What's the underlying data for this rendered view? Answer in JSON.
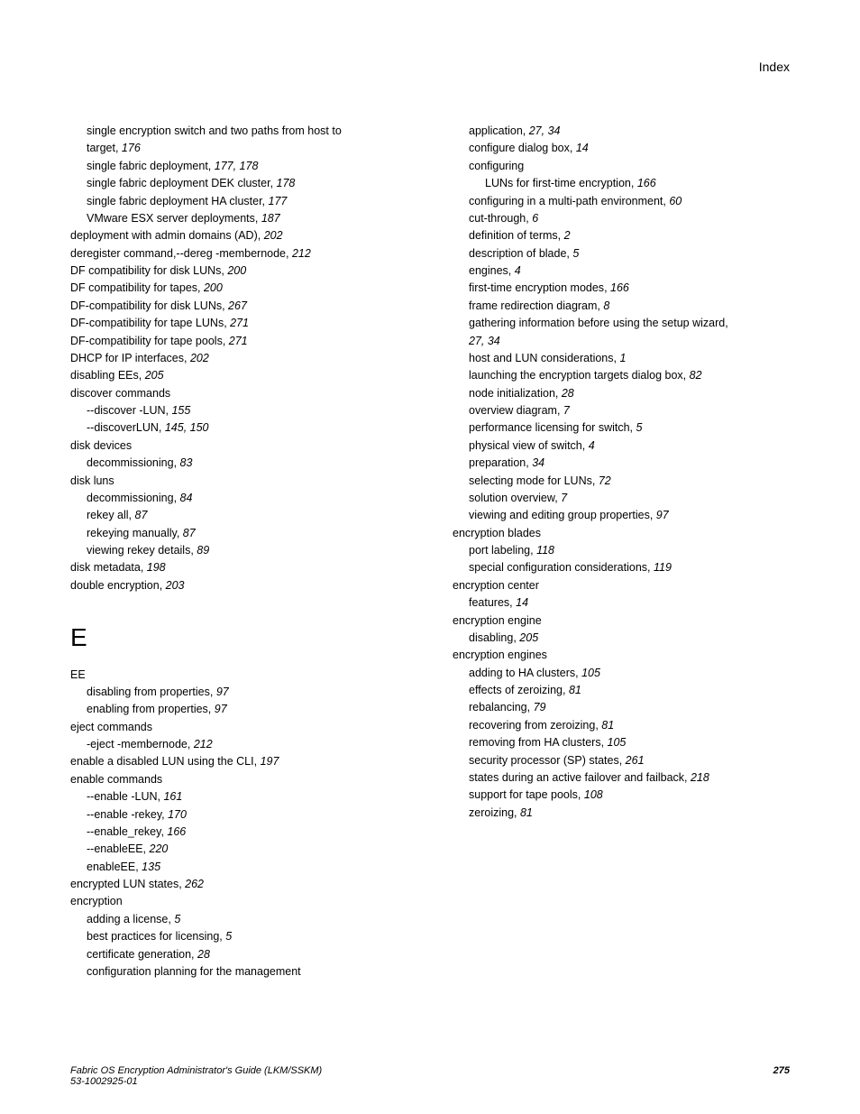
{
  "header": {
    "right": "Index"
  },
  "footer": {
    "title": "Fabric OS Encryption Administrator's Guide  (LKM/SSKM)",
    "docnum": "53-1002925-01",
    "page": "275"
  },
  "sectionLetter": "E",
  "col1": [
    {
      "indent": 1,
      "text": "single encryption switch and two paths from host to"
    },
    {
      "indent": 1,
      "text": " target",
      "pages": "176"
    },
    {
      "indent": 1,
      "text": "single fabric deployment",
      "pages": "177, 178"
    },
    {
      "indent": 1,
      "text": "single fabric deployment DEK cluster",
      "pages": "178"
    },
    {
      "indent": 1,
      "text": "single fabric deployment HA cluster",
      "pages": "177"
    },
    {
      "indent": 1,
      "text": "VMware ESX server deployments",
      "pages": "187"
    },
    {
      "indent": 0,
      "text": "deployment with admin domains (AD)",
      "pages": "202"
    },
    {
      "indent": 0,
      "text": "deregister command,--dereg -membernode",
      "pages": "212"
    },
    {
      "indent": 0,
      "text": "DF compatibility for disk LUNs",
      "pages": "200"
    },
    {
      "indent": 0,
      "text": "DF compatibility for tapes",
      "pages": "200"
    },
    {
      "indent": 0,
      "text": "DF-compatibility for disk LUNs",
      "pages": "267"
    },
    {
      "indent": 0,
      "text": "DF-compatibility for tape LUNs",
      "pages": "271"
    },
    {
      "indent": 0,
      "text": "DF-compatibility for tape pools",
      "pages": "271"
    },
    {
      "indent": 0,
      "text": "DHCP for IP interfaces",
      "pages": "202"
    },
    {
      "indent": 0,
      "text": "disabling EEs",
      "pages": "205"
    },
    {
      "indent": 0,
      "text": "discover commands"
    },
    {
      "indent": 1,
      "text": "--discover -LUN",
      "pages": "155"
    },
    {
      "indent": 1,
      "text": "--discoverLUN",
      "pages": "145, 150"
    },
    {
      "indent": 0,
      "text": "disk devices"
    },
    {
      "indent": 1,
      "text": "decommissioning",
      "pages": "83"
    },
    {
      "indent": 0,
      "text": "disk luns"
    },
    {
      "indent": 1,
      "text": "decommissioning",
      "pages": "84"
    },
    {
      "indent": 1,
      "text": "rekey all",
      "pages": "87"
    },
    {
      "indent": 1,
      "text": "rekeying manually",
      "pages": "87"
    },
    {
      "indent": 1,
      "text": "viewing rekey details",
      "pages": "89"
    },
    {
      "indent": 0,
      "text": "disk metadata",
      "pages": "198"
    },
    {
      "indent": 0,
      "text": "double encryption",
      "pages": "203"
    }
  ],
  "col1b": [
    {
      "indent": 0,
      "text": "EE"
    },
    {
      "indent": 1,
      "text": "disabling from properties",
      "pages": "97"
    },
    {
      "indent": 1,
      "text": "enabling from properties",
      "pages": "97"
    },
    {
      "indent": 0,
      "text": "eject commands"
    },
    {
      "indent": 1,
      "text": "-eject -membernode",
      "pages": "212"
    },
    {
      "indent": 0,
      "text": "enable a disabled LUN using the CLI",
      "pages": "197"
    },
    {
      "indent": 0,
      "text": "enable commands"
    },
    {
      "indent": 1,
      "text": "--enable -LUN",
      "pages": "161"
    },
    {
      "indent": 1,
      "text": "--enable -rekey",
      "pages": "170"
    },
    {
      "indent": 1,
      "text": "--enable_rekey",
      "pages": "166"
    },
    {
      "indent": 1,
      "text": "--enableEE",
      "pages": "220"
    },
    {
      "indent": 1,
      "text": "enableEE",
      "pages": "135"
    },
    {
      "indent": 0,
      "text": "encrypted LUN states",
      "pages": "262"
    },
    {
      "indent": 0,
      "text": "encryption"
    },
    {
      "indent": 1,
      "text": "adding a license",
      "pages": "5"
    },
    {
      "indent": 1,
      "text": "best practices for licensing",
      "pages": "5"
    },
    {
      "indent": 1,
      "text": "certificate generation",
      "pages": "28"
    },
    {
      "indent": 1,
      "text": "configuration planning for the management"
    }
  ],
  "col2": [
    {
      "indent": 1,
      "text": " application",
      "pages": "27, 34"
    },
    {
      "indent": 1,
      "text": "configure dialog box",
      "pages": "14"
    },
    {
      "indent": 1,
      "text": "configuring"
    },
    {
      "indent": 2,
      "text": "LUNs for first-time encryption",
      "pages": "166"
    },
    {
      "indent": 1,
      "text": "configuring in a multi-path environment",
      "pages": "60"
    },
    {
      "indent": 1,
      "text": "cut-through",
      "pages": "6"
    },
    {
      "indent": 1,
      "text": "definition of terms",
      "pages": "2"
    },
    {
      "indent": 1,
      "text": "description of blade",
      "pages": "5"
    },
    {
      "indent": 1,
      "text": "engines",
      "pages": "4"
    },
    {
      "indent": 1,
      "text": "first-time encryption modes",
      "pages": "166"
    },
    {
      "indent": 1,
      "text": "frame redirection diagram",
      "pages": "8"
    },
    {
      "indent": 1,
      "text": "gathering information before using the setup wizard,"
    },
    {
      "indent": 1,
      "text": " ",
      "pages": "27, 34"
    },
    {
      "indent": 1,
      "text": "host and LUN considerations",
      "pages": "1"
    },
    {
      "indent": 1,
      "text": "launching the encryption targets dialog box",
      "pages": "82"
    },
    {
      "indent": 1,
      "text": "node initialization",
      "pages": "28"
    },
    {
      "indent": 1,
      "text": "overview diagram",
      "pages": "7"
    },
    {
      "indent": 1,
      "text": "performance licensing for switch",
      "pages": "5"
    },
    {
      "indent": 1,
      "text": "physical view of switch",
      "pages": "4"
    },
    {
      "indent": 1,
      "text": "preparation",
      "pages": "34"
    },
    {
      "indent": 1,
      "text": "selecting mode for LUNs",
      "pages": "72"
    },
    {
      "indent": 1,
      "text": "solution overview",
      "pages": "7"
    },
    {
      "indent": 1,
      "text": "viewing and editing group properties",
      "pages": "97"
    },
    {
      "indent": 0,
      "text": "encryption blades"
    },
    {
      "indent": 1,
      "text": "port labeling",
      "pages": "118"
    },
    {
      "indent": 1,
      "text": "special configuration considerations",
      "pages": "119"
    },
    {
      "indent": 0,
      "text": "encryption center"
    },
    {
      "indent": 1,
      "text": "features",
      "pages": "14"
    },
    {
      "indent": 0,
      "text": "encryption engine"
    },
    {
      "indent": 1,
      "text": "disabling",
      "pages": "205"
    },
    {
      "indent": 0,
      "text": "encryption engines"
    },
    {
      "indent": 1,
      "text": "adding to HA clusters",
      "pages": "105"
    },
    {
      "indent": 1,
      "text": "effects of zeroizing",
      "pages": "81"
    },
    {
      "indent": 1,
      "text": "rebalancing",
      "pages": "79"
    },
    {
      "indent": 1,
      "text": "recovering from zeroizing",
      "pages": "81"
    },
    {
      "indent": 1,
      "text": "removing from HA clusters",
      "pages": "105"
    },
    {
      "indent": 1,
      "text": "security processor (SP) states",
      "pages": "261"
    },
    {
      "indent": 1,
      "text": "states during an active failover and failback",
      "pages": "218"
    },
    {
      "indent": 1,
      "text": "support for tape pools",
      "pages": "108"
    },
    {
      "indent": 1,
      "text": "zeroizing",
      "pages": "81"
    }
  ]
}
